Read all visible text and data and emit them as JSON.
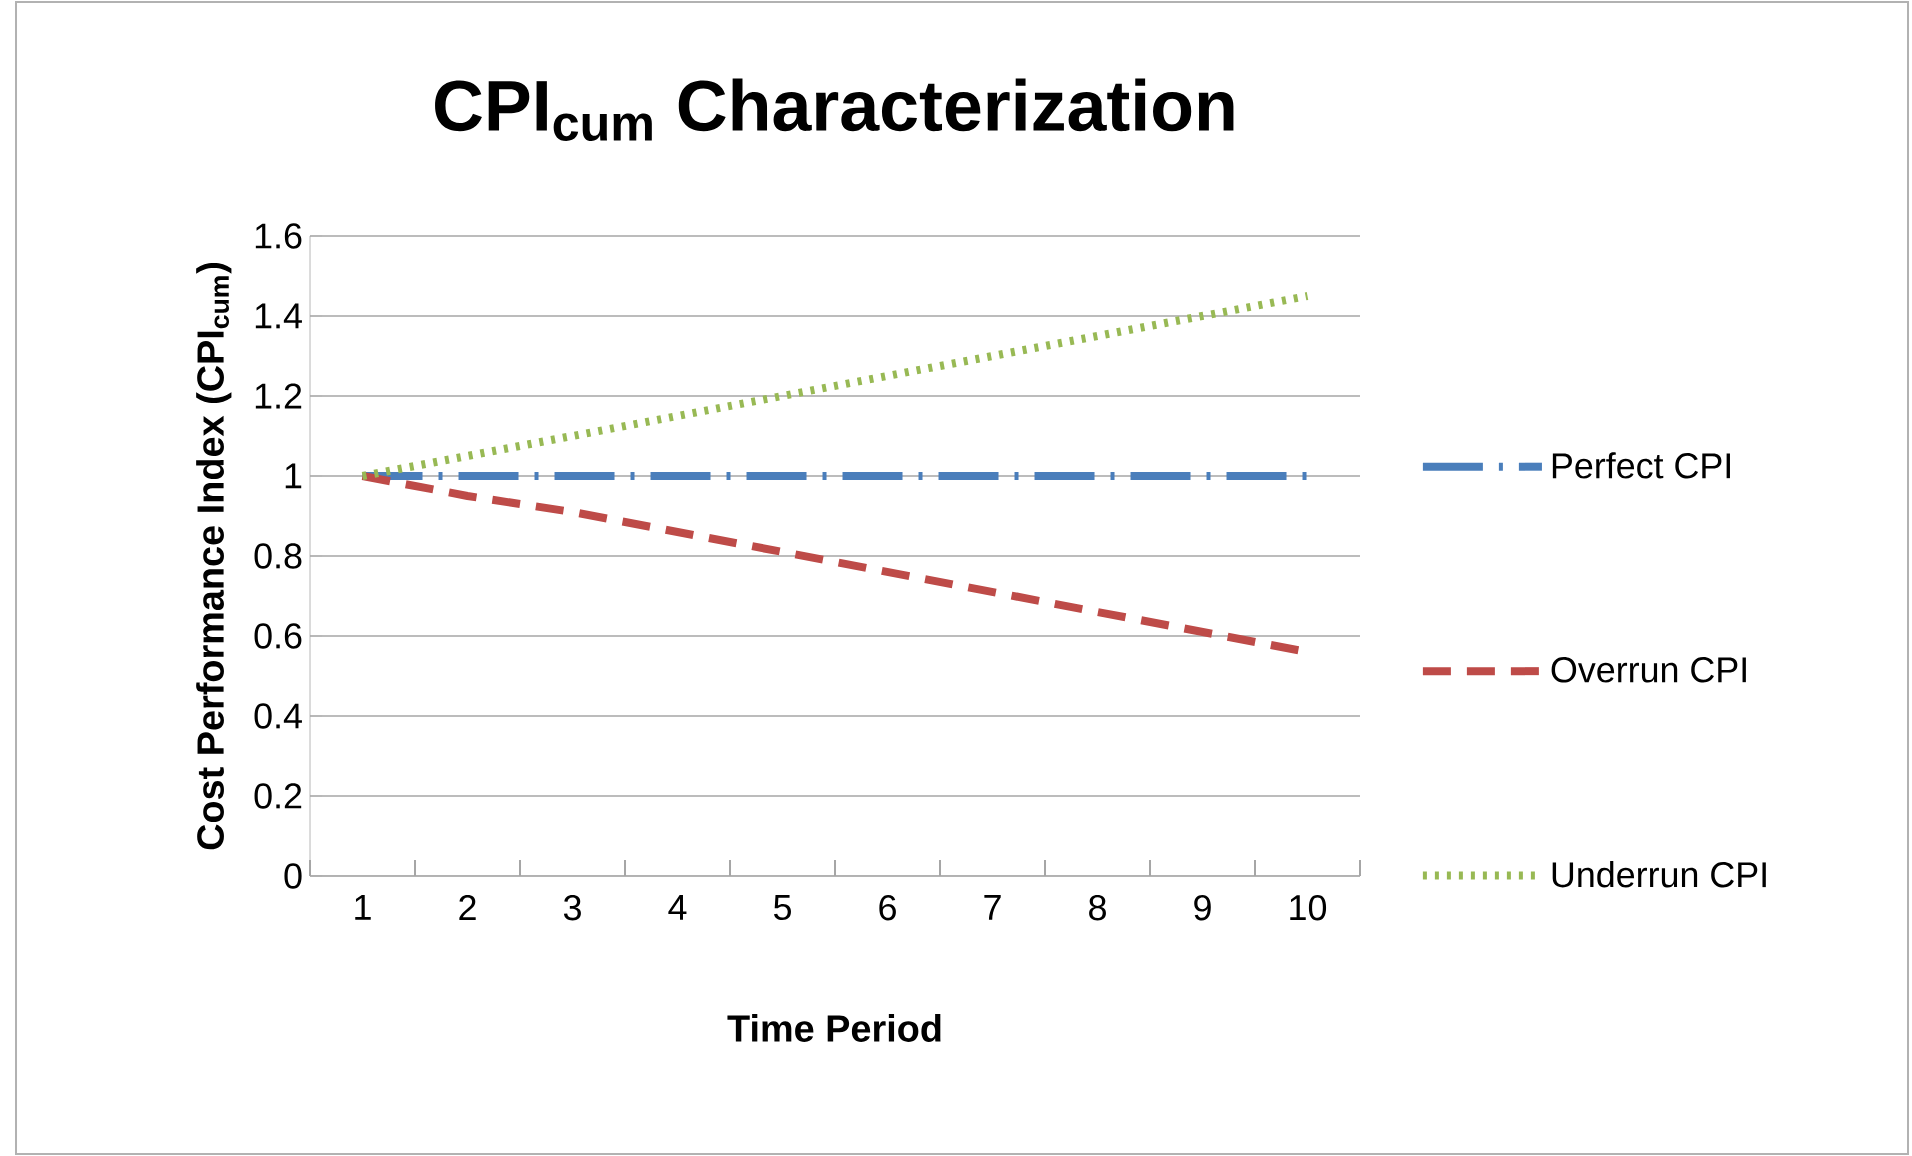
{
  "chart_data": {
    "type": "line",
    "title": "CPI$_{cum}$ Characterization",
    "xlabel": "Time Period",
    "ylabel": "Cost Performance Index (CPI$_{cum}$)",
    "categories": [
      "1",
      "2",
      "3",
      "4",
      "5",
      "6",
      "7",
      "8",
      "9",
      "10"
    ],
    "series": [
      {
        "name": "Perfect CPI",
        "color": "#4a7ebb",
        "line_style": "dashdot",
        "values": [
          1,
          1,
          1,
          1,
          1,
          1,
          1,
          1,
          1,
          1
        ]
      },
      {
        "name": "Overrun CPI",
        "color": "#be4b48",
        "line_style": "dashed",
        "values": [
          1,
          0.95,
          0.91,
          0.86,
          0.81,
          0.76,
          0.71,
          0.66,
          0.61,
          0.56
        ]
      },
      {
        "name": "Underrun CPI",
        "color": "#98b954",
        "line_style": "dotted",
        "values": [
          1,
          1.05,
          1.1,
          1.15,
          1.2,
          1.25,
          1.3,
          1.35,
          1.4,
          1.45
        ]
      }
    ],
    "ylim": [
      0,
      1.6
    ],
    "yticks": [
      0,
      0.2,
      0.4,
      0.6,
      0.8,
      1,
      1.2,
      1.4,
      1.6
    ],
    "grid": "y",
    "legend": "right",
    "marker": "none"
  }
}
